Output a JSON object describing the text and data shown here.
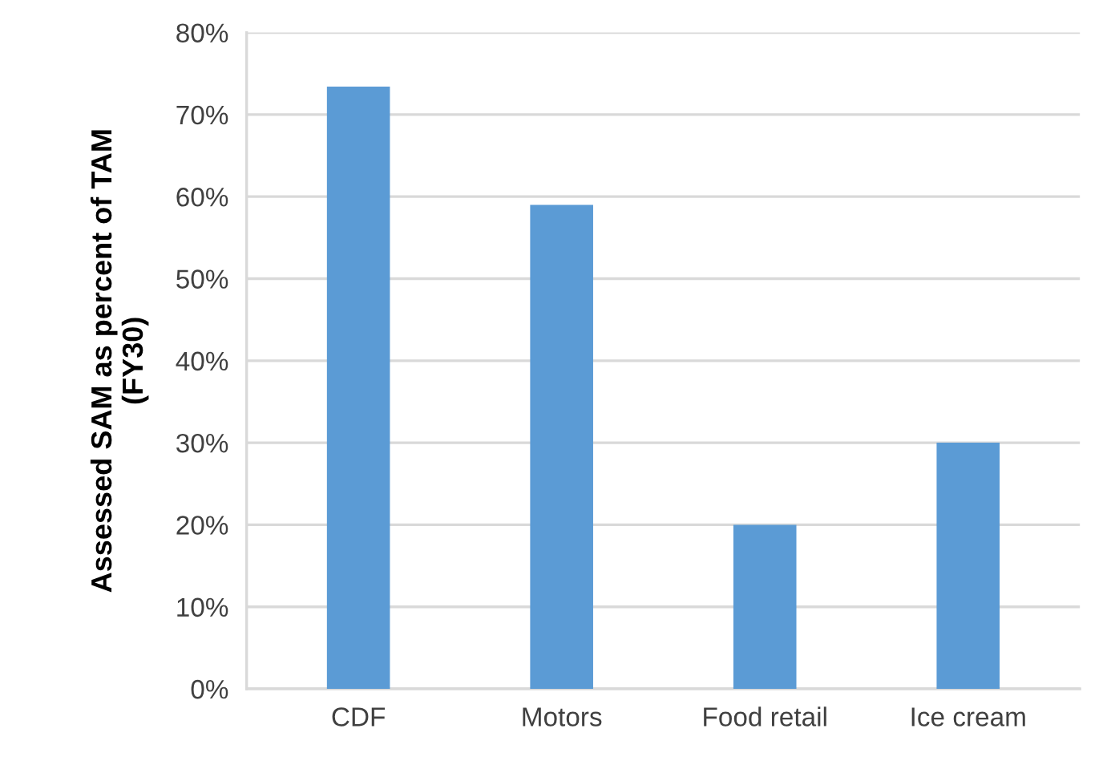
{
  "chart_data": {
    "type": "bar",
    "ylabel": "Assessed SAM as percent of TAM\n(FY30)",
    "categories": [
      "CDF",
      "Motors",
      "Food retail",
      "Ice cream"
    ],
    "values": [
      73.4,
      59,
      20,
      30
    ],
    "color": "#5b9bd5",
    "ylim": [
      0,
      80
    ],
    "yticks": [
      {
        "value": 0,
        "label": "0%"
      },
      {
        "value": 10,
        "label": "10%"
      },
      {
        "value": 20,
        "label": "20%"
      },
      {
        "value": 30,
        "label": "30%"
      },
      {
        "value": 40,
        "label": "40%"
      },
      {
        "value": 50,
        "label": "50%"
      },
      {
        "value": 60,
        "label": "60%"
      },
      {
        "value": 70,
        "label": "70%"
      },
      {
        "value": 80,
        "label": "80%"
      }
    ],
    "grid": "y"
  }
}
